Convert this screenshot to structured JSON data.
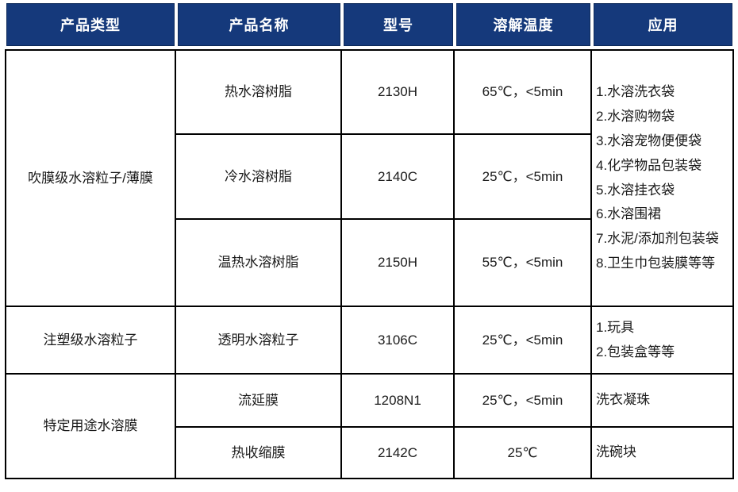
{
  "colors": {
    "header_bg": "#15397b",
    "header_text": "#ffffff",
    "border": "#000000",
    "body_text": "#1a1a1a"
  },
  "header": [
    "产品类型",
    "产品名称",
    "型号",
    "溶解温度",
    "应用"
  ],
  "groups": [
    {
      "type": "吹膜级水溶粒子/薄膜",
      "products": [
        {
          "name": "热水溶树脂",
          "model": "2130H",
          "temperature": "65℃，<5min"
        },
        {
          "name": "冷水溶树脂",
          "model": "2140C",
          "temperature": "25℃，<5min"
        },
        {
          "name": "温热水溶树脂",
          "model": "2150H",
          "temperature": "55℃，<5min"
        }
      ],
      "applications": [
        "1.水溶洗衣袋",
        "2.水溶购物袋",
        "3.水溶宠物便便袋",
        "4.化学物品包装袋",
        "5.水溶挂衣袋",
        "6.水溶围裙",
        "7.水泥/添加剂包装袋",
        "8.卫生巾包装膜等等"
      ]
    },
    {
      "type": "注塑级水溶粒子",
      "products": [
        {
          "name": "透明水溶粒子",
          "model": "3106C",
          "temperature": "25℃，<5min"
        }
      ],
      "applications": [
        "1.玩具",
        "2.包装盒等等"
      ]
    },
    {
      "type": "特定用途水溶膜",
      "products": [
        {
          "name": "流延膜",
          "model": "1208N1",
          "temperature": "25℃，<5min",
          "application": "洗衣凝珠"
        },
        {
          "name": "热收缩膜",
          "model": "2142C",
          "temperature": "25℃",
          "application": "洗碗块"
        }
      ]
    }
  ]
}
